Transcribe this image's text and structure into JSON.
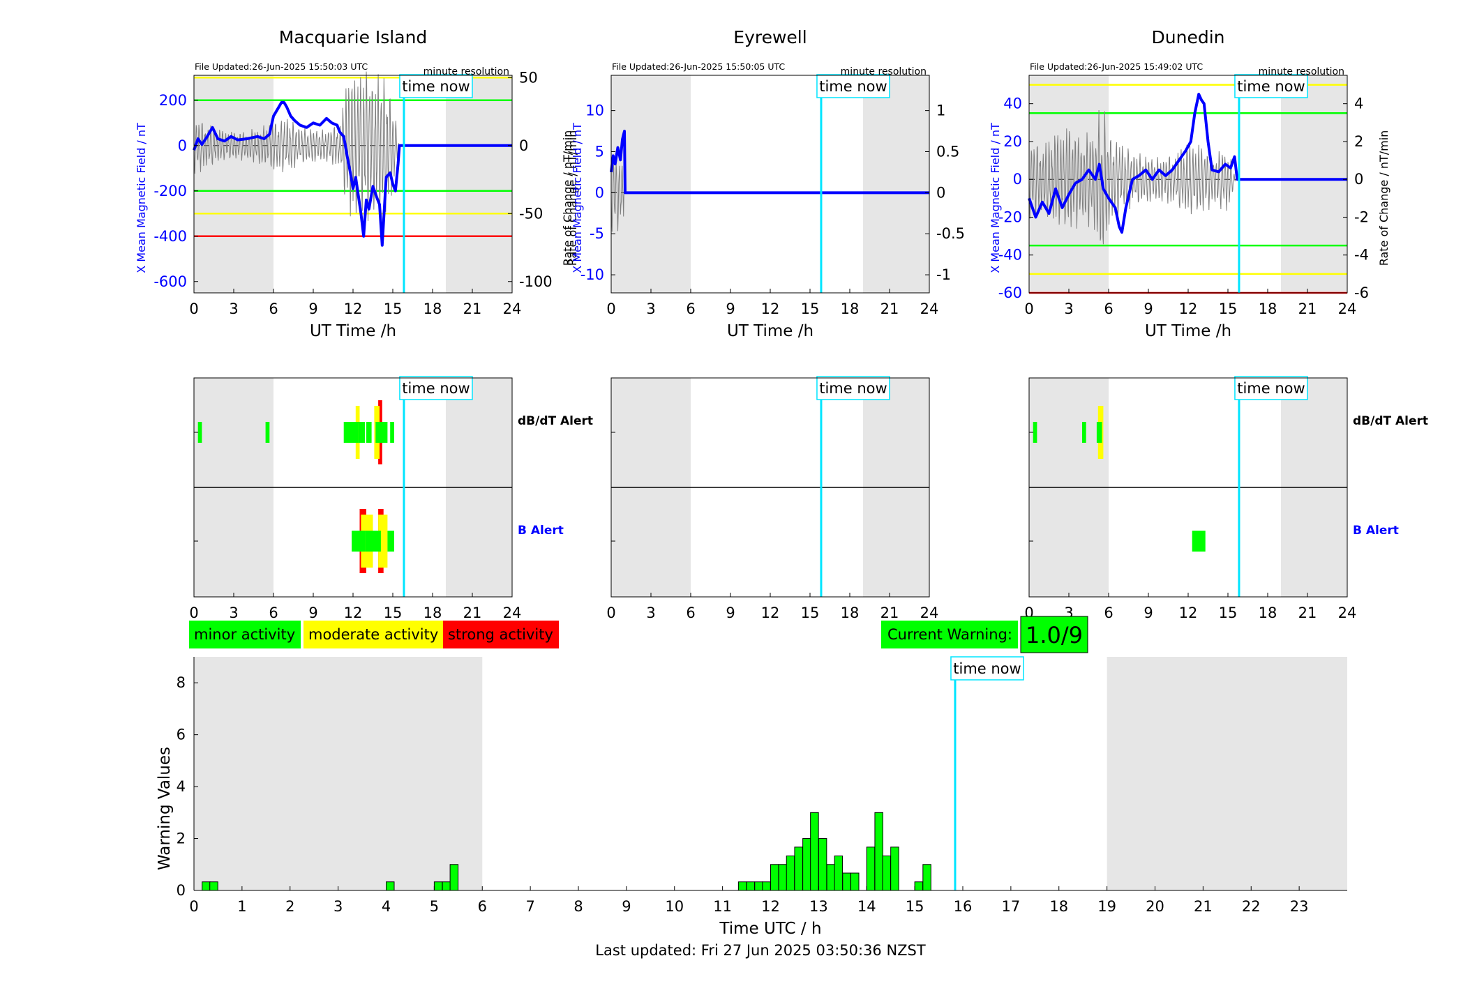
{
  "colors": {
    "field": "#0000ff",
    "rate": "#7f7f7f",
    "timeNow": "#00e5ff",
    "minor": "#00ff00",
    "moderate": "#ffff00",
    "strong": "#ff0000",
    "night": "#e6e6e6"
  },
  "common": {
    "time_now_label": "time now",
    "time_now_h": 15.84,
    "night_shade_h": [
      [
        0,
        6
      ],
      [
        19,
        24
      ]
    ],
    "utc_xlabel": "UT Time /h",
    "utc_xticks": [
      0,
      3,
      6,
      9,
      12,
      15,
      18,
      21,
      24
    ],
    "file_resolution": "minute resolution",
    "dbdt_alert_label": "dB/dT Alert",
    "b_alert_label": "B Alert"
  },
  "stations": [
    {
      "name": "Macquarie Island",
      "file_updated": "File Updated:26-Jun-2025 15:50:03 UTC",
      "left_ylabel": "X Mean Magnetic Field / nT",
      "right_ylabel": "Rate of Change / nT/min",
      "ylim_field": [
        -650,
        310
      ],
      "ylim_rate": [
        -108.33,
        51.67
      ],
      "yticks_field": [
        -600,
        -400,
        -200,
        0,
        200
      ],
      "yticks_rate": [
        -100,
        -50,
        0,
        50
      ],
      "threshold_lines": [
        {
          "value": 300,
          "level": "moderate"
        },
        {
          "value": 200,
          "level": "minor"
        },
        {
          "value": -200,
          "level": "minor"
        },
        {
          "value": -300,
          "level": "moderate"
        },
        {
          "value": -400,
          "level": "strong"
        }
      ],
      "field_series": [
        [
          0.0,
          -20
        ],
        [
          0.3,
          30
        ],
        [
          0.6,
          5
        ],
        [
          1.0,
          40
        ],
        [
          1.4,
          80
        ],
        [
          1.8,
          30
        ],
        [
          2.3,
          20
        ],
        [
          2.8,
          40
        ],
        [
          3.3,
          25
        ],
        [
          4.0,
          30
        ],
        [
          4.8,
          40
        ],
        [
          5.3,
          30
        ],
        [
          5.7,
          50
        ],
        [
          6.0,
          130
        ],
        [
          6.3,
          160
        ],
        [
          6.6,
          190
        ],
        [
          6.8,
          190
        ],
        [
          7.0,
          170
        ],
        [
          7.3,
          130
        ],
        [
          7.6,
          110
        ],
        [
          8.0,
          90
        ],
        [
          8.5,
          80
        ],
        [
          9.0,
          100
        ],
        [
          9.5,
          90
        ],
        [
          10.0,
          120
        ],
        [
          10.4,
          100
        ],
        [
          10.8,
          90
        ],
        [
          11.0,
          60
        ],
        [
          11.3,
          40
        ],
        [
          11.6,
          -60
        ],
        [
          11.8,
          -120
        ],
        [
          12.0,
          -190
        ],
        [
          12.2,
          -140
        ],
        [
          12.4,
          -220
        ],
        [
          12.6,
          -300
        ],
        [
          12.8,
          -400
        ],
        [
          13.0,
          -240
        ],
        [
          13.2,
          -280
        ],
        [
          13.5,
          -180
        ],
        [
          13.8,
          -230
        ],
        [
          14.0,
          -260
        ],
        [
          14.2,
          -440
        ],
        [
          14.5,
          -140
        ],
        [
          14.8,
          -120
        ],
        [
          15.0,
          -170
        ],
        [
          15.2,
          -200
        ],
        [
          15.4,
          -80
        ],
        [
          15.5,
          0
        ],
        [
          24.0,
          0
        ]
      ],
      "rate_envelope": [
        [
          0.0,
          22
        ],
        [
          1.0,
          18
        ],
        [
          2.0,
          12
        ],
        [
          3.0,
          10
        ],
        [
          4.0,
          12
        ],
        [
          5.0,
          14
        ],
        [
          6.0,
          18
        ],
        [
          7.0,
          22
        ],
        [
          8.0,
          15
        ],
        [
          9.0,
          12
        ],
        [
          10.0,
          12
        ],
        [
          11.0,
          18
        ],
        [
          11.5,
          48
        ],
        [
          12.0,
          55
        ],
        [
          12.5,
          50
        ],
        [
          13.0,
          60
        ],
        [
          13.5,
          55
        ],
        [
          14.0,
          60
        ],
        [
          14.5,
          50
        ],
        [
          15.0,
          35
        ],
        [
          15.5,
          0
        ]
      ],
      "dbdt_alerts": [
        [
          0.3,
          0.6,
          "minor"
        ],
        [
          5.4,
          5.7,
          "minor"
        ],
        [
          11.3,
          12.4,
          "minor"
        ],
        [
          12.2,
          12.5,
          "moderate"
        ],
        [
          12.4,
          12.9,
          "minor"
        ],
        [
          13.0,
          13.4,
          "minor"
        ],
        [
          13.6,
          14.0,
          "moderate"
        ],
        [
          13.9,
          14.2,
          "strong"
        ],
        [
          13.7,
          14.6,
          "minor"
        ],
        [
          14.8,
          15.1,
          "minor"
        ]
      ],
      "b_alerts": [
        [
          11.9,
          12.9,
          "minor"
        ],
        [
          12.5,
          13.0,
          "strong"
        ],
        [
          12.6,
          13.5,
          "moderate"
        ],
        [
          12.9,
          13.7,
          "minor"
        ],
        [
          13.6,
          14.1,
          "minor"
        ],
        [
          13.9,
          14.3,
          "strong"
        ],
        [
          13.9,
          14.6,
          "moderate"
        ],
        [
          14.6,
          15.0,
          "minor"
        ],
        [
          14.8,
          15.1,
          "minor"
        ]
      ]
    },
    {
      "name": "Eyrewell",
      "file_updated": "File Updated:26-Jun-2025 15:50:05 UTC",
      "left_ylabel": "X Mean Magnetic Field / nT",
      "right_ylabel": "Rate of Change / nT/min",
      "ylim_field": [
        -12.2,
        14.3
      ],
      "ylim_rate": [
        -1.22,
        1.43
      ],
      "yticks_field": [
        -10,
        -5,
        0,
        5,
        10
      ],
      "yticks_rate": [
        -1,
        -0.5,
        0,
        0.5,
        1
      ],
      "threshold_lines": [],
      "field_series": [
        [
          0.0,
          2.5
        ],
        [
          0.15,
          4.5
        ],
        [
          0.3,
          3.5
        ],
        [
          0.5,
          5.5
        ],
        [
          0.7,
          4.0
        ],
        [
          0.85,
          6.5
        ],
        [
          1.0,
          7.5
        ],
        [
          1.05,
          0
        ],
        [
          24.0,
          0
        ]
      ],
      "rate_envelope": [
        [
          0.0,
          0.5
        ],
        [
          0.5,
          0.5
        ],
        [
          0.9,
          0.4
        ],
        [
          1.05,
          0.0
        ]
      ],
      "dbdt_alerts": [],
      "b_alerts": []
    },
    {
      "name": "Dunedin",
      "file_updated": "File Updated:26-Jun-2025 15:49:02 UTC",
      "left_ylabel": "X Mean Magnetic Field / nT",
      "right_ylabel": "Rate of Change / nT/min",
      "ylim_field": [
        -60,
        55
      ],
      "ylim_rate": [
        -6,
        5.5
      ],
      "yticks_field": [
        -60,
        -40,
        -20,
        0,
        20,
        40
      ],
      "yticks_rate": [
        -6,
        -4,
        -2,
        0,
        2,
        4
      ],
      "threshold_lines": [
        {
          "value": 50,
          "level": "moderate"
        },
        {
          "value": 35,
          "level": "minor"
        },
        {
          "value": -35,
          "level": "minor"
        },
        {
          "value": -50,
          "level": "moderate"
        },
        {
          "value": -60,
          "level": "strong"
        }
      ],
      "field_series": [
        [
          0.0,
          -10
        ],
        [
          0.5,
          -20
        ],
        [
          1.0,
          -12
        ],
        [
          1.5,
          -18
        ],
        [
          2.0,
          -5
        ],
        [
          2.5,
          -15
        ],
        [
          3.0,
          -8
        ],
        [
          3.5,
          -2
        ],
        [
          4.0,
          0
        ],
        [
          4.5,
          5
        ],
        [
          5.0,
          0
        ],
        [
          5.3,
          8
        ],
        [
          5.6,
          -5
        ],
        [
          6.0,
          -10
        ],
        [
          6.5,
          -15
        ],
        [
          6.8,
          -25
        ],
        [
          7.0,
          -28
        ],
        [
          7.3,
          -15
        ],
        [
          7.8,
          0
        ],
        [
          8.3,
          2
        ],
        [
          8.8,
          5
        ],
        [
          9.3,
          0
        ],
        [
          9.8,
          5
        ],
        [
          10.3,
          2
        ],
        [
          10.8,
          5
        ],
        [
          11.3,
          10
        ],
        [
          11.8,
          15
        ],
        [
          12.2,
          20
        ],
        [
          12.5,
          35
        ],
        [
          12.8,
          45
        ],
        [
          13.0,
          42
        ],
        [
          13.2,
          40
        ],
        [
          13.5,
          20
        ],
        [
          13.8,
          5
        ],
        [
          14.3,
          4
        ],
        [
          14.8,
          8
        ],
        [
          15.2,
          6
        ],
        [
          15.5,
          12
        ],
        [
          15.7,
          0
        ],
        [
          24.0,
          0
        ]
      ],
      "rate_envelope": [
        [
          0.0,
          2.2
        ],
        [
          1.0,
          2.0
        ],
        [
          2.0,
          2.5
        ],
        [
          3.0,
          2.8
        ],
        [
          4.0,
          2.5
        ],
        [
          5.0,
          2.8
        ],
        [
          5.5,
          4.5
        ],
        [
          6.0,
          2.5
        ],
        [
          7.0,
          2.0
        ],
        [
          8.0,
          1.5
        ],
        [
          9.0,
          1.2
        ],
        [
          10.0,
          1.2
        ],
        [
          11.0,
          1.5
        ],
        [
          12.0,
          2.0
        ],
        [
          13.0,
          1.8
        ],
        [
          14.0,
          1.5
        ],
        [
          15.0,
          1.8
        ],
        [
          15.6,
          0
        ]
      ],
      "dbdt_alerts": [
        [
          0.3,
          0.6,
          "minor"
        ],
        [
          4.0,
          4.3,
          "minor"
        ],
        [
          5.2,
          5.6,
          "moderate"
        ],
        [
          5.1,
          5.5,
          "minor"
        ]
      ],
      "b_alerts": [
        [
          12.3,
          13.3,
          "minor"
        ]
      ]
    }
  ],
  "legend": {
    "minor": "minor activity",
    "moderate": "moderate activity",
    "strong": "strong activity"
  },
  "current_warning": {
    "label": "Current Warning:",
    "value": "1.0/9"
  },
  "footer": {
    "last_updated": "Last updated: Fri 27 Jun 2025 03:50:36 NZST"
  },
  "chart_data": [
    {
      "type": "line",
      "title": "Macquarie Island",
      "xlabel": "UT Time /h",
      "ylabel": "X Mean Magnetic Field / nT",
      "y2label": "Rate of Change / nT/min",
      "xlim": [
        0,
        24
      ],
      "ylim": [
        -650,
        310
      ]
    },
    {
      "type": "line",
      "title": "Eyrewell",
      "xlabel": "UT Time /h",
      "ylabel": "X Mean Magnetic Field / nT",
      "y2label": "Rate of Change / nT/min",
      "xlim": [
        0,
        24
      ],
      "ylim": [
        -12.2,
        14.3
      ]
    },
    {
      "type": "line",
      "title": "Dunedin",
      "xlabel": "UT Time /h",
      "ylabel": "X Mean Magnetic Field / nT",
      "y2label": "Rate of Change / nT/min",
      "xlim": [
        0,
        24
      ],
      "ylim": [
        -60,
        55
      ]
    },
    {
      "type": "bar",
      "xlabel": "Time UTC / h",
      "ylabel": "Warning Values",
      "xlim": [
        0,
        24
      ],
      "ylim": [
        0,
        9
      ],
      "xticks": [
        0,
        1,
        2,
        3,
        4,
        5,
        6,
        7,
        8,
        9,
        10,
        11,
        12,
        13,
        14,
        15,
        16,
        17,
        18,
        19,
        20,
        21,
        22,
        23
      ],
      "yticks": [
        0,
        2,
        4,
        6,
        8
      ],
      "bar_width_h": 0.1667,
      "bars": [
        [
          0.17,
          0.33
        ],
        [
          0.33,
          0.33
        ],
        [
          4.0,
          0.33
        ],
        [
          5.0,
          0.33
        ],
        [
          5.17,
          0.33
        ],
        [
          5.33,
          1.0
        ],
        [
          11.33,
          0.33
        ],
        [
          11.5,
          0.33
        ],
        [
          11.67,
          0.33
        ],
        [
          11.83,
          0.33
        ],
        [
          12.0,
          1.0
        ],
        [
          12.17,
          1.0
        ],
        [
          12.33,
          1.33
        ],
        [
          12.5,
          1.67
        ],
        [
          12.67,
          2.0
        ],
        [
          12.83,
          3.0
        ],
        [
          13.0,
          2.0
        ],
        [
          13.17,
          1.0
        ],
        [
          13.33,
          1.33
        ],
        [
          13.5,
          0.67
        ],
        [
          13.67,
          0.67
        ],
        [
          14.0,
          1.67
        ],
        [
          14.17,
          3.0
        ],
        [
          14.33,
          1.33
        ],
        [
          14.5,
          1.67
        ],
        [
          15.0,
          0.33
        ],
        [
          15.17,
          1.0
        ]
      ]
    }
  ]
}
